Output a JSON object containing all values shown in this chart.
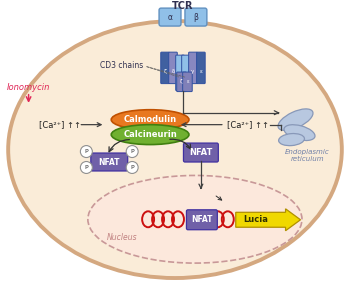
{
  "bg_color": "#ffffff",
  "cell_fill": "#faecd8",
  "cell_edge": "#d4a880",
  "nucleus_fill": "#fce8dc",
  "nucleus_edge": "#c89898",
  "tcr_label": "TCR",
  "cd3_label": "CD3 chains",
  "ionomycin_label": "Ionomycin",
  "ca_left_label": "[Ca²⁺] ↑↑",
  "ca_right_label": "[Ca²⁺] ↑↑",
  "calmodulin_label": "Calmodulin",
  "calcineurin_label": "Calcineurin",
  "er_label": "Endoplasmic\nreticulum",
  "nfat_label": "NFAT",
  "nucleus_label": "Nucleus",
  "lucia_label": "Lucia",
  "p_label": "P",
  "purple_dark": "#7060A8",
  "orange_calmodulin": "#E87820",
  "green_calcineurin": "#70B030",
  "yellow_lucia": "#F0D800",
  "red_dna": "#CC1010",
  "blue_tcr_light": "#90C0E8",
  "blue_tcr_mid": "#6090C0",
  "blue_tcr_dark": "#4060A0",
  "blue_cd3": "#8888C0",
  "er_fill": "#B8C8E0",
  "er_edge": "#8898B8"
}
